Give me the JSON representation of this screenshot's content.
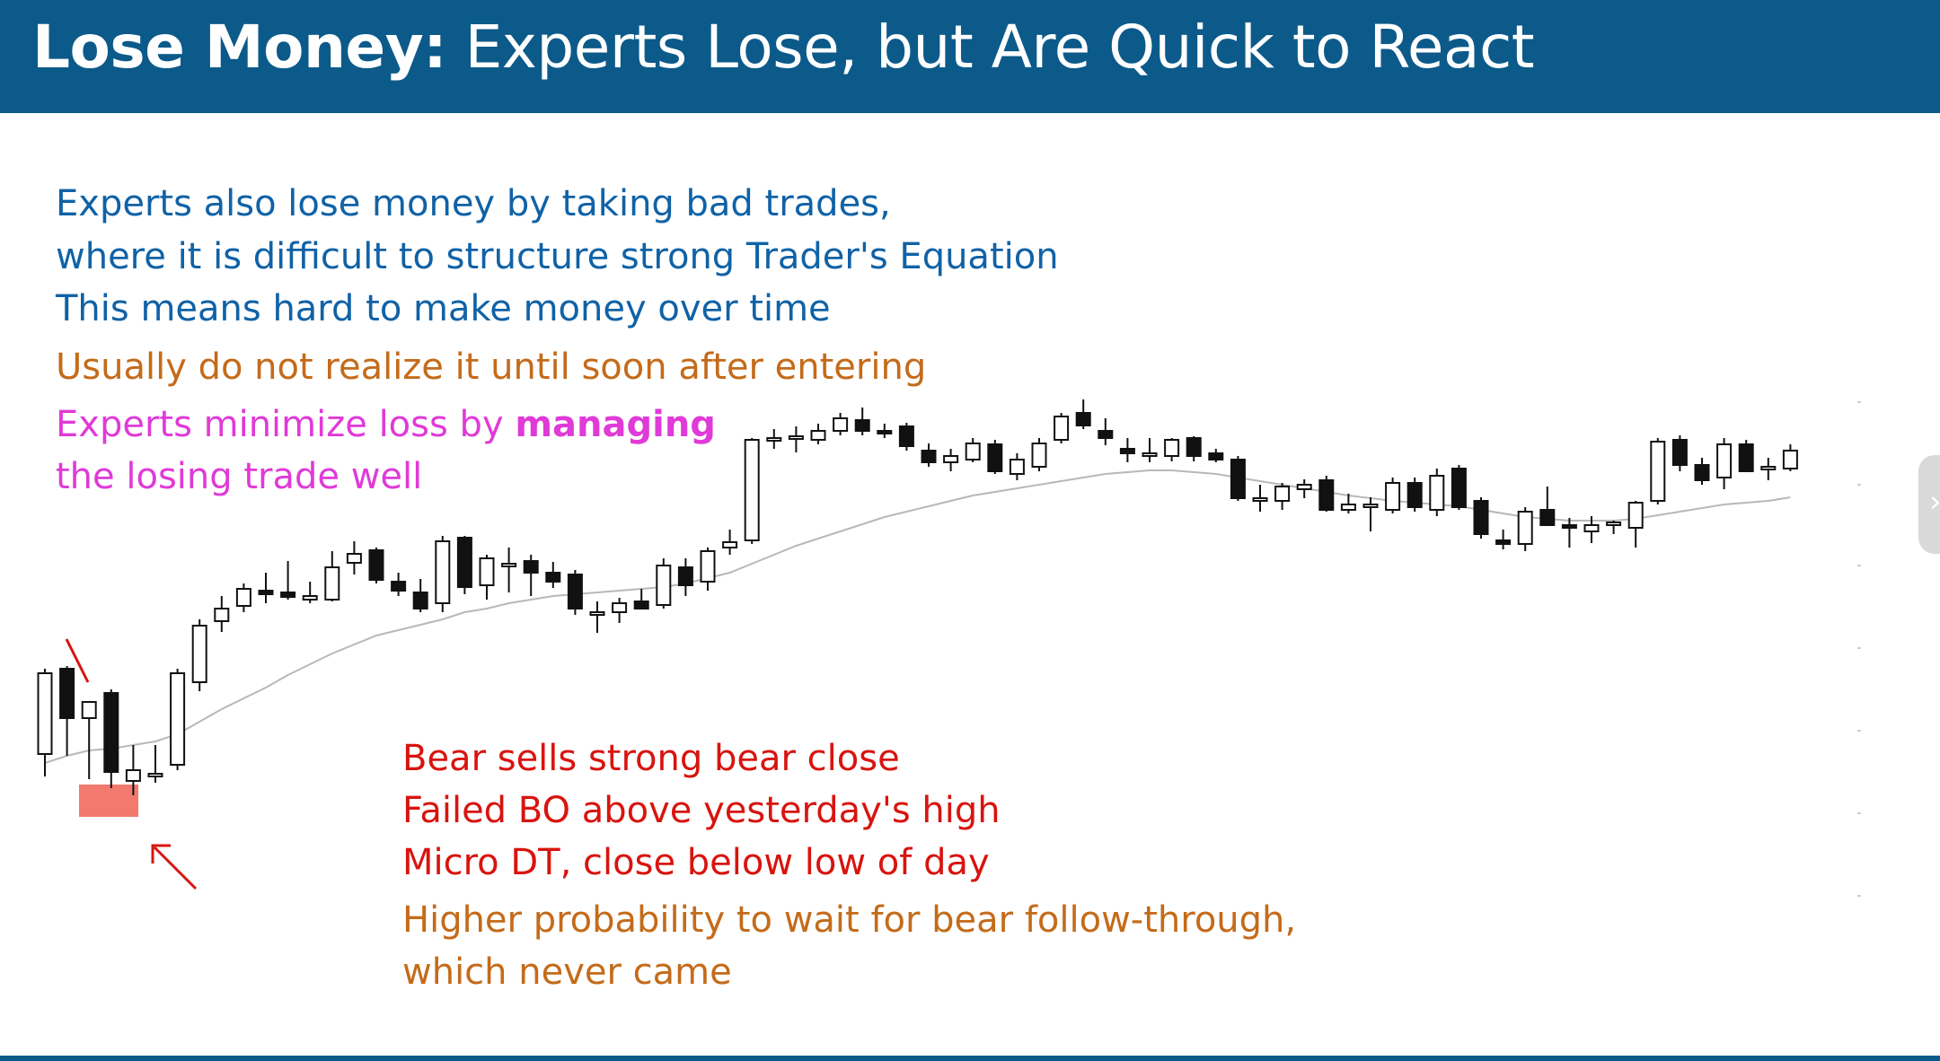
{
  "slide": {
    "title_bold": "Lose Money:",
    "title_rest": " Experts Lose, but Are Quick to React",
    "lines": {
      "l1": "Experts also lose money by taking bad trades,",
      "l2": "where it is difficult to structure strong Trader's Equation",
      "l3": "This means hard to make money over time",
      "l4": "Usually do not realize it until soon after entering",
      "l5a": "Experts minimize loss by ",
      "l5b": "managing",
      "l6": "the losing trade well"
    },
    "notes": {
      "n1": "Bear sells strong bear close",
      "n2": "Failed BO above yesterday's high",
      "n3": "Micro DT, close below low of day",
      "n4": "Higher probability to wait for bear follow-through,",
      "n5": "which never came"
    },
    "next_icon": "chevron-right-icon",
    "colors": {
      "header": "#0c5a8a",
      "blue_text": "#1062a6",
      "orange_text": "#c46b1a",
      "magenta_text": "#e03ad8",
      "red_text": "#d8140f",
      "highlight": "#f06a5e"
    }
  },
  "chart_data": {
    "type": "candlestick",
    "candles": [
      {
        "o": 650,
        "h": 745,
        "l": 625,
        "c": 740
      },
      {
        "o": 745,
        "h": 748,
        "l": 648,
        "c": 690
      },
      {
        "o": 690,
        "h": 709,
        "l": 622,
        "c": 708
      },
      {
        "o": 718,
        "h": 722,
        "l": 612,
        "c": 630
      },
      {
        "o": 620,
        "h": 660,
        "l": 604,
        "c": 632
      },
      {
        "o": 628,
        "h": 660,
        "l": 618,
        "c": 628
      },
      {
        "o": 638,
        "h": 745,
        "l": 632,
        "c": 740
      },
      {
        "o": 730,
        "h": 800,
        "l": 720,
        "c": 793
      },
      {
        "o": 798,
        "h": 826,
        "l": 786,
        "c": 812
      },
      {
        "o": 815,
        "h": 840,
        "l": 808,
        "c": 834
      },
      {
        "o": 832,
        "h": 852,
        "l": 818,
        "c": 828
      },
      {
        "o": 830,
        "h": 865,
        "l": 822,
        "c": 825
      },
      {
        "o": 822,
        "h": 842,
        "l": 818,
        "c": 826
      },
      {
        "o": 822,
        "h": 876,
        "l": 820,
        "c": 858
      },
      {
        "o": 863,
        "h": 887,
        "l": 850,
        "c": 873
      },
      {
        "o": 877,
        "h": 880,
        "l": 840,
        "c": 844
      },
      {
        "o": 842,
        "h": 852,
        "l": 826,
        "c": 832
      },
      {
        "o": 830,
        "h": 845,
        "l": 808,
        "c": 812
      },
      {
        "o": 818,
        "h": 893,
        "l": 808,
        "c": 887
      },
      {
        "o": 891,
        "h": 893,
        "l": 828,
        "c": 836
      },
      {
        "o": 838,
        "h": 872,
        "l": 822,
        "c": 868
      },
      {
        "o": 860,
        "h": 880,
        "l": 830,
        "c": 862
      },
      {
        "o": 865,
        "h": 872,
        "l": 826,
        "c": 852
      },
      {
        "o": 852,
        "h": 864,
        "l": 835,
        "c": 842
      },
      {
        "o": 850,
        "h": 855,
        "l": 805,
        "c": 812
      },
      {
        "o": 805,
        "h": 820,
        "l": 785,
        "c": 808
      },
      {
        "o": 808,
        "h": 824,
        "l": 796,
        "c": 818
      },
      {
        "o": 820,
        "h": 834,
        "l": 812,
        "c": 812
      },
      {
        "o": 816,
        "h": 868,
        "l": 812,
        "c": 860
      },
      {
        "o": 858,
        "h": 868,
        "l": 826,
        "c": 838
      },
      {
        "o": 842,
        "h": 880,
        "l": 832,
        "c": 876
      },
      {
        "o": 880,
        "h": 900,
        "l": 872,
        "c": 886
      },
      {
        "o": 888,
        "h": 1002,
        "l": 884,
        "c": 1000
      },
      {
        "o": 1001,
        "h": 1012,
        "l": 990,
        "c": 1002
      },
      {
        "o": 1001,
        "h": 1015,
        "l": 986,
        "c": 1004
      },
      {
        "o": 1000,
        "h": 1018,
        "l": 995,
        "c": 1010
      },
      {
        "o": 1010,
        "h": 1030,
        "l": 1005,
        "c": 1024
      },
      {
        "o": 1022,
        "h": 1036,
        "l": 1005,
        "c": 1010
      },
      {
        "o": 1010,
        "h": 1018,
        "l": 1002,
        "c": 1008
      },
      {
        "o": 1015,
        "h": 1019,
        "l": 988,
        "c": 993
      },
      {
        "o": 988,
        "h": 996,
        "l": 970,
        "c": 975
      },
      {
        "o": 975,
        "h": 990,
        "l": 965,
        "c": 982
      },
      {
        "o": 978,
        "h": 1002,
        "l": 975,
        "c": 996
      },
      {
        "o": 995,
        "h": 1000,
        "l": 962,
        "c": 965
      },
      {
        "o": 962,
        "h": 985,
        "l": 955,
        "c": 978
      },
      {
        "o": 970,
        "h": 1002,
        "l": 965,
        "c": 996
      },
      {
        "o": 1000,
        "h": 1030,
        "l": 996,
        "c": 1026
      },
      {
        "o": 1030,
        "h": 1045,
        "l": 1012,
        "c": 1016
      },
      {
        "o": 1010,
        "h": 1024,
        "l": 994,
        "c": 1002
      },
      {
        "o": 990,
        "h": 1002,
        "l": 975,
        "c": 985
      },
      {
        "o": 985,
        "h": 1002,
        "l": 975,
        "c": 985
      },
      {
        "o": 982,
        "h": 1002,
        "l": 976,
        "c": 1000
      },
      {
        "o": 1002,
        "h": 1004,
        "l": 976,
        "c": 982
      },
      {
        "o": 985,
        "h": 990,
        "l": 975,
        "c": 978
      },
      {
        "o": 978,
        "h": 982,
        "l": 932,
        "c": 935
      },
      {
        "o": 932,
        "h": 950,
        "l": 920,
        "c": 935
      },
      {
        "o": 932,
        "h": 952,
        "l": 922,
        "c": 948
      },
      {
        "o": 945,
        "h": 956,
        "l": 935,
        "c": 950
      },
      {
        "o": 955,
        "h": 960,
        "l": 920,
        "c": 922
      },
      {
        "o": 922,
        "h": 940,
        "l": 918,
        "c": 928
      },
      {
        "o": 925,
        "h": 936,
        "l": 898,
        "c": 928
      },
      {
        "o": 922,
        "h": 958,
        "l": 918,
        "c": 952
      },
      {
        "o": 952,
        "h": 958,
        "l": 920,
        "c": 925
      },
      {
        "o": 922,
        "h": 968,
        "l": 915,
        "c": 960
      },
      {
        "o": 968,
        "h": 972,
        "l": 922,
        "c": 925
      },
      {
        "o": 932,
        "h": 936,
        "l": 890,
        "c": 895
      },
      {
        "o": 888,
        "h": 900,
        "l": 878,
        "c": 884
      },
      {
        "o": 884,
        "h": 925,
        "l": 876,
        "c": 920
      },
      {
        "o": 922,
        "h": 948,
        "l": 905,
        "c": 905
      },
      {
        "o": 905,
        "h": 913,
        "l": 880,
        "c": 902
      },
      {
        "o": 898,
        "h": 915,
        "l": 885,
        "c": 905
      },
      {
        "o": 905,
        "h": 910,
        "l": 895,
        "c": 908
      },
      {
        "o": 902,
        "h": 932,
        "l": 880,
        "c": 930
      },
      {
        "o": 932,
        "h": 1002,
        "l": 928,
        "c": 998
      },
      {
        "o": 1000,
        "h": 1005,
        "l": 965,
        "c": 972
      },
      {
        "o": 972,
        "h": 980,
        "l": 950,
        "c": 955
      },
      {
        "o": 958,
        "h": 1002,
        "l": 945,
        "c": 995
      },
      {
        "o": 995,
        "h": 1000,
        "l": 965,
        "c": 965
      },
      {
        "o": 968,
        "h": 980,
        "l": 955,
        "c": 970
      },
      {
        "o": 968,
        "h": 995,
        "l": 965,
        "c": 988
      }
    ],
    "moving_average": [
      640,
      648,
      654,
      656,
      660,
      664,
      672,
      686,
      700,
      712,
      724,
      738,
      750,
      762,
      772,
      782,
      788,
      794,
      800,
      808,
      812,
      818,
      822,
      826,
      828,
      830,
      832,
      834,
      836,
      840,
      846,
      852,
      862,
      872,
      882,
      890,
      898,
      906,
      914,
      920,
      926,
      932,
      938,
      942,
      946,
      950,
      954,
      958,
      962,
      964,
      966,
      966,
      964,
      962,
      958,
      954,
      950,
      946,
      942,
      938,
      935,
      932,
      930,
      928,
      926,
      922,
      918,
      914,
      912,
      910,
      910,
      910,
      912,
      916,
      920,
      924,
      928,
      930,
      932,
      936
    ]
  }
}
